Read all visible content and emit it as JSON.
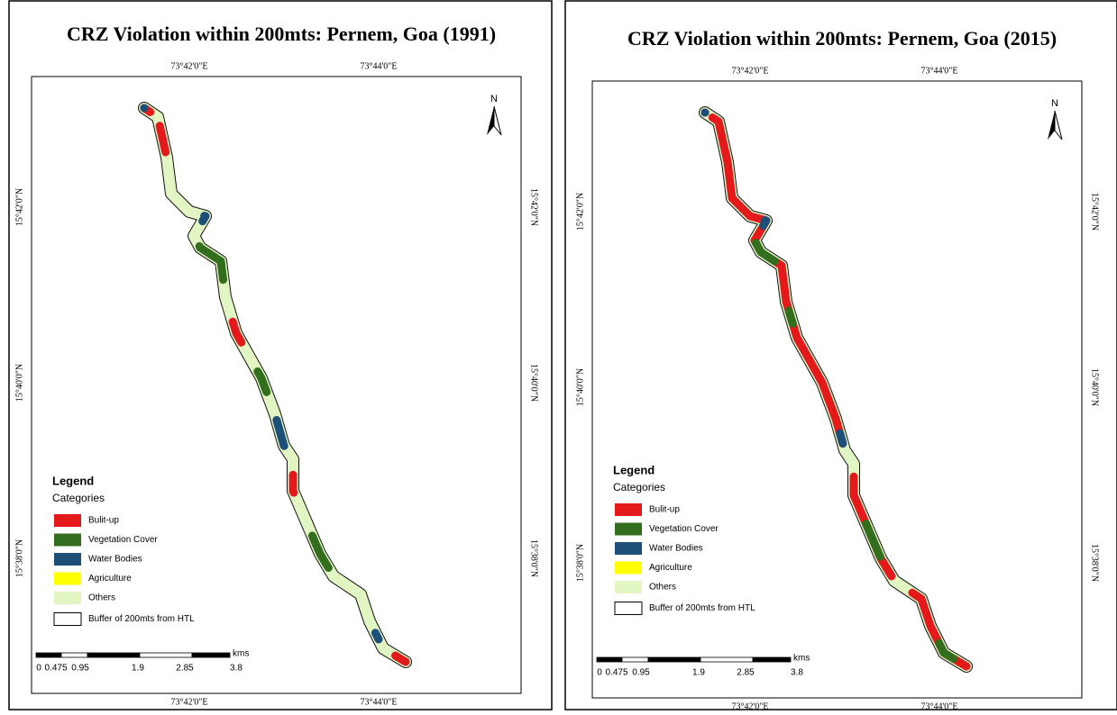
{
  "panels": [
    {
      "title": "CRZ Violation within 200mts: Pernem, Goa (1991)",
      "top_labels": [
        "73°42'0\"E",
        "73°44'0\"E"
      ],
      "bottom_labels": [
        "73°42'0\"E",
        "73°44'0\"E"
      ],
      "left_labels": [
        "15°42'0\"N",
        "15°40'0\"N",
        "15°38'0\"N"
      ],
      "right_labels": [
        "15°42'0\"N",
        "15°40'0\"N",
        "15°38'0\"N"
      ],
      "north": "N",
      "legend": {
        "title": "Legend",
        "subtitle": "Categories",
        "items": [
          {
            "label": "Bulit-up",
            "color": "#e3191c"
          },
          {
            "label": "Vegetation Cover",
            "color": "#336e1e"
          },
          {
            "label": "Water Bodies",
            "color": "#1d4f78"
          },
          {
            "label": "Agriculture",
            "color": "#ffff00"
          },
          {
            "label": "Others",
            "color": "#e2f6c3"
          }
        ],
        "buffer": "Buffer of 200mts from HTL"
      },
      "scale": {
        "labels": [
          "0",
          "0.475",
          "0.95",
          "1.9",
          "2.85",
          "3.8"
        ],
        "unit": "kms"
      }
    },
    {
      "title": "CRZ Violation within 200mts: Pernem, Goa (2015)",
      "top_labels": [
        "73°42'0\"E",
        "73°44'0\"E"
      ],
      "bottom_labels": [
        "73°42'0\"E",
        "73°44'0\"E"
      ],
      "left_labels": [
        "15°42'0\"N",
        "15°40'0\"N",
        "15°38'0\"N"
      ],
      "right_labels": [
        "15°42'0\"N",
        "15°40'0\"N",
        "15°38'0\"N"
      ],
      "north": "N",
      "legend": {
        "title": "Legend",
        "subtitle": "Categories",
        "items": [
          {
            "label": "Bulit-up",
            "color": "#e3191c"
          },
          {
            "label": "Vegetation Cover",
            "color": "#336e1e"
          },
          {
            "label": "Water Bodies",
            "color": "#1d4f78"
          },
          {
            "label": "Agriculture",
            "color": "#ffff00"
          },
          {
            "label": "Others",
            "color": "#e2f6c3"
          }
        ],
        "buffer": "Buffer of 200mts from HTL"
      },
      "scale": {
        "labels": [
          "0",
          "0.475",
          "0.95",
          "1.9",
          "2.85",
          "3.8"
        ],
        "unit": "kms"
      }
    }
  ]
}
